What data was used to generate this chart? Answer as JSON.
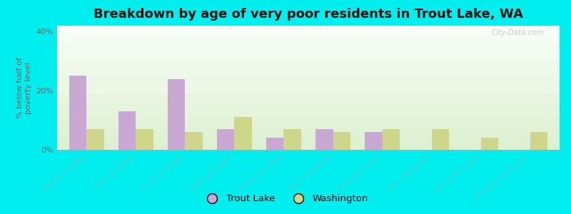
{
  "title": "Breakdown by age of very poor residents in Trout Lake, WA",
  "ylabel": "% below half of\npoverty level",
  "categories": [
    "Under 6 years",
    "6 to 11 years",
    "12 to 17 years",
    "18 to 24 years",
    "25 to 34 years",
    "35 to 44 years",
    "45 to 54 years",
    "55 to 64 years",
    "65 to 74 years",
    "75 years and over"
  ],
  "trout_lake": [
    25.0,
    13.0,
    24.0,
    7.0,
    4.0,
    7.0,
    6.0,
    0.0,
    0.0,
    0.0
  ],
  "washington": [
    7.0,
    7.0,
    6.0,
    11.0,
    7.0,
    6.0,
    7.0,
    7.0,
    4.0,
    6.0
  ],
  "trout_lake_color": "#c9a8d4",
  "washington_color": "#cdd68a",
  "background_color": "#00eeee",
  "ylim": [
    0,
    42
  ],
  "yticks": [
    0,
    20,
    40
  ],
  "ytick_labels": [
    "0%",
    "20%",
    "40%"
  ],
  "bar_width": 0.35,
  "title_fontsize": 13,
  "legend_labels": [
    "Trout Lake",
    "Washington"
  ],
  "watermark": "City-Data.com",
  "xtick_color": "#4dcfcf",
  "ytick_color": "#666666"
}
